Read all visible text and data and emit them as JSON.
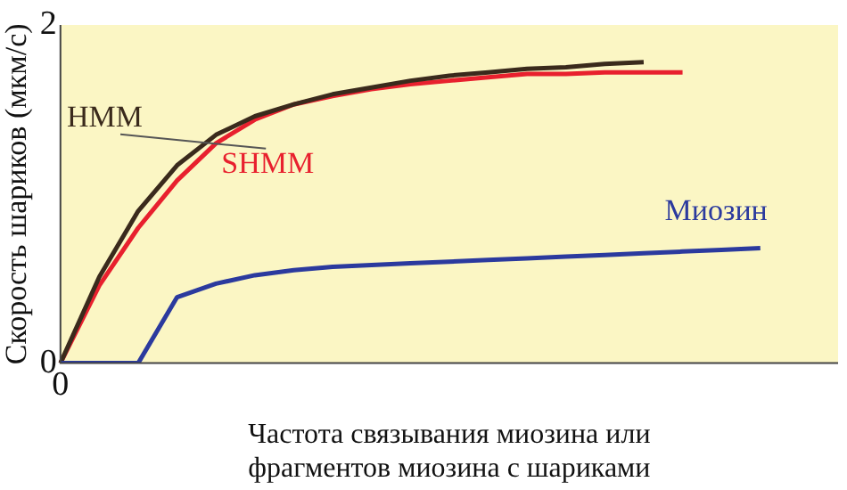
{
  "chart_data": {
    "type": "line",
    "xlabel": "Частота связывания миозина или фрагментов миозина с шариками",
    "ylabel": "Скорость шариков (мкм/с)",
    "annotations": [
      "0"
    ],
    "categories": [
      null,
      null,
      null,
      null,
      null,
      null,
      null,
      null,
      null,
      null,
      null,
      null,
      null,
      null,
      null,
      null,
      null,
      null,
      null,
      null,
      null
    ],
    "ylim": [
      0,
      2
    ],
    "yticks": [
      0,
      2
    ],
    "grid": false,
    "legend": false,
    "marker": "none",
    "line_style": "solid",
    "series": [
      {
        "name": "Миозин",
        "color": "#2b3a9e",
        "values": [
          0,
          0,
          0,
          0.39,
          0.47,
          0.52,
          0.55,
          0.57,
          0.58,
          0.59,
          0.6,
          0.61,
          0.62,
          0.63,
          0.64,
          0.65,
          0.66,
          0.67,
          0.68,
          null,
          null
        ]
      },
      {
        "name": "HMM",
        "color": "#3a2a1c",
        "values": [
          0,
          0.51,
          0.9,
          1.17,
          1.35,
          1.46,
          1.53,
          1.59,
          1.63,
          1.67,
          1.7,
          1.72,
          1.74,
          1.75,
          1.77,
          1.78,
          null,
          null,
          null,
          null,
          null
        ]
      },
      {
        "name": "SHMM",
        "color": "#e8202e",
        "values": [
          0,
          0.46,
          0.8,
          1.08,
          1.3,
          1.44,
          1.53,
          1.58,
          1.62,
          1.65,
          1.67,
          1.69,
          1.71,
          1.71,
          1.72,
          1.72,
          1.72,
          null,
          null,
          null,
          null
        ]
      }
    ]
  }
}
